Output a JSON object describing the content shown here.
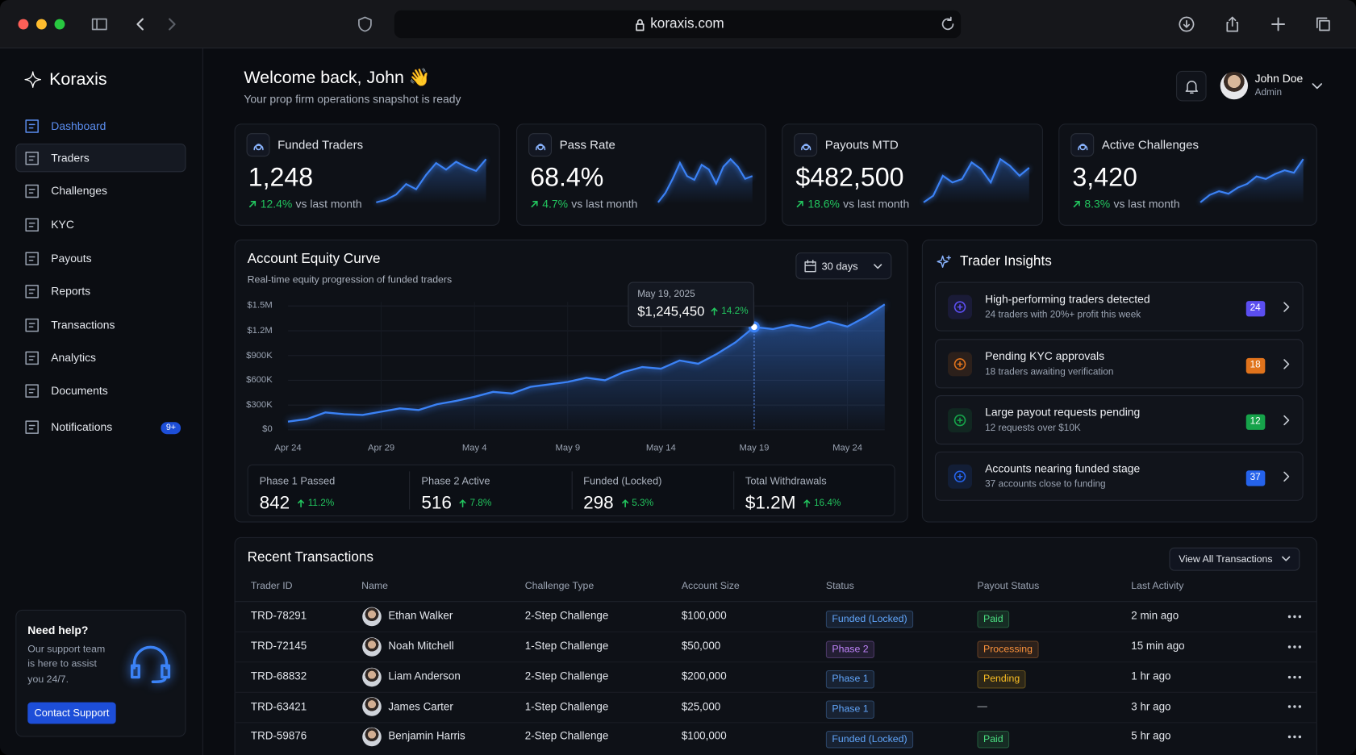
{
  "browser": {
    "url": "koraxis.com"
  },
  "sidebar": {
    "brand": "Koraxis",
    "nav": [
      {
        "label": "Dashboard"
      },
      {
        "label": "Traders"
      },
      {
        "label": "Challenges"
      },
      {
        "label": "KYC"
      },
      {
        "label": "Payouts"
      },
      {
        "label": "Reports"
      },
      {
        "label": "Transactions"
      },
      {
        "label": "Analytics"
      },
      {
        "label": "Documents"
      },
      {
        "label": "Notifications",
        "badge": "9+"
      }
    ],
    "help": {
      "title": "Need help?",
      "lines": [
        "Our support team",
        "is here to assist",
        "you 24/7."
      ],
      "button": "Contact Support"
    }
  },
  "header": {
    "title": "Welcome back, John 👋",
    "subtitle": "Your prop firm operations snapshot is ready",
    "user": {
      "name": "John Doe",
      "role": "Admin"
    }
  },
  "kpis": [
    {
      "label": "Funded Traders",
      "value": "1,248",
      "change": "12.4%",
      "note": "vs last month",
      "spark": [
        10,
        14,
        22,
        38,
        30,
        52,
        70,
        60,
        72,
        64,
        58,
        76
      ]
    },
    {
      "label": "Pass Rate",
      "value": "68.4%",
      "change": "4.7%",
      "note": "vs last month",
      "spark": [
        20,
        30,
        45,
        62,
        48,
        44,
        60,
        55,
        40,
        58,
        66,
        58,
        45,
        48
      ]
    },
    {
      "label": "Payouts MTD",
      "value": "$482,500",
      "change": "18.6%",
      "note": "vs last month",
      "spark": [
        20,
        30,
        60,
        50,
        55,
        80,
        70,
        50,
        85,
        75,
        60,
        72
      ]
    },
    {
      "label": "Active Challenges",
      "value": "3,420",
      "change": "8.3%",
      "note": "vs last month",
      "spark": [
        10,
        22,
        28,
        24,
        34,
        40,
        52,
        48,
        56,
        62,
        58,
        80
      ]
    }
  ],
  "equity_chart": {
    "type": "line",
    "title": "Account Equity Curve",
    "subtitle": "Real-time equity progression of funded traders",
    "range": "30 days",
    "color": "#3b82f6",
    "x": [
      "Apr 24",
      null,
      null,
      null,
      null,
      "Apr 29",
      null,
      null,
      null,
      null,
      "May 4",
      null,
      null,
      null,
      null,
      "May 9",
      null,
      null,
      null,
      null,
      "May 14",
      null,
      null,
      null,
      null,
      "May 19",
      null,
      null,
      null,
      null,
      "May 24",
      null,
      null
    ],
    "values": [
      100000,
      130000,
      210000,
      190000,
      180000,
      220000,
      260000,
      240000,
      310000,
      350000,
      400000,
      460000,
      440000,
      520000,
      550000,
      580000,
      630000,
      600000,
      700000,
      760000,
      740000,
      840000,
      800000,
      920000,
      1060000,
      1245450,
      1220000,
      1270000,
      1230000,
      1310000,
      1250000,
      1370000,
      1520000
    ],
    "ylim": [
      0,
      1550000
    ],
    "yticks": [
      {
        "value": 0,
        "label": "$0"
      },
      {
        "value": 300000,
        "label": "$300K"
      },
      {
        "value": 600000,
        "label": "$600K"
      },
      {
        "value": 900000,
        "label": "$900K"
      },
      {
        "value": 1200000,
        "label": "$1.2M"
      },
      {
        "value": 1500000,
        "label": "$1.5M"
      }
    ],
    "grid": true,
    "tooltip": {
      "date": "May 19, 2025",
      "value": "$1,245,450",
      "change": "14.2%"
    },
    "stats": [
      {
        "label": "Phase 1 Passed",
        "value": "842",
        "change": "11.2%"
      },
      {
        "label": "Phase 2 Active",
        "value": "516",
        "change": "7.8%"
      },
      {
        "label": "Funded (Locked)",
        "value": "298",
        "change": "5.3%"
      },
      {
        "label": "Total Withdrawals",
        "value": "$1.2M",
        "change": "16.4%"
      }
    ]
  },
  "insights": {
    "title": "Trader Insights",
    "items": [
      {
        "title": "High-performing traders detected",
        "subtitle": "24 traders with 20%+ profit this week",
        "badge": "24",
        "color": "#5b4ef0"
      },
      {
        "title": "Pending KYC approvals",
        "subtitle": "18 traders awaiting verification",
        "badge": "18",
        "color": "#e0731c"
      },
      {
        "title": "Large payout requests pending",
        "subtitle": "12 requests over $10K",
        "badge": "12",
        "color": "#16a34a"
      },
      {
        "title": "Accounts nearing funded stage",
        "subtitle": "37 accounts close to funding",
        "badge": "37",
        "color": "#2563eb"
      }
    ]
  },
  "transactions": {
    "title": "Recent Transactions",
    "button": "View All Transactions",
    "columns": [
      "Trader ID",
      "Name",
      "Challenge Type",
      "Account Size",
      "Status",
      "Payout Status",
      "Last Activity"
    ],
    "rows": [
      {
        "id": "TRD-78291",
        "name": "Ethan Walker",
        "challenge": "2-Step Challenge",
        "size": "$100,000",
        "status": {
          "text": "Funded (Locked)",
          "color": "#60a5fa"
        },
        "payout": {
          "text": "Paid",
          "color": "#4ade80"
        },
        "activity": "2 min ago"
      },
      {
        "id": "TRD-72145",
        "name": "Noah Mitchell",
        "challenge": "1-Step Challenge",
        "size": "$50,000",
        "status": {
          "text": "Phase 2",
          "color": "#c084fc"
        },
        "payout": {
          "text": "Processing",
          "color": "#fb923c"
        },
        "activity": "15 min ago"
      },
      {
        "id": "TRD-68832",
        "name": "Liam Anderson",
        "challenge": "2-Step Challenge",
        "size": "$200,000",
        "status": {
          "text": "Phase 1",
          "color": "#60a5fa"
        },
        "payout": {
          "text": "Pending",
          "color": "#fbbf24"
        },
        "activity": "1 hr ago"
      },
      {
        "id": "TRD-63421",
        "name": "James Carter",
        "challenge": "1-Step Challenge",
        "size": "$25,000",
        "status": {
          "text": "Phase 1",
          "color": "#60a5fa"
        },
        "payout": {
          "text": "—"
        },
        "activity": "3 hr ago"
      },
      {
        "id": "TRD-59876",
        "name": "Benjamin Harris",
        "challenge": "2-Step Challenge",
        "size": "$100,000",
        "status": {
          "text": "Funded (Locked)",
          "color": "#60a5fa"
        },
        "payout": {
          "text": "Paid",
          "color": "#4ade80"
        },
        "activity": "5 hr ago"
      }
    ]
  }
}
